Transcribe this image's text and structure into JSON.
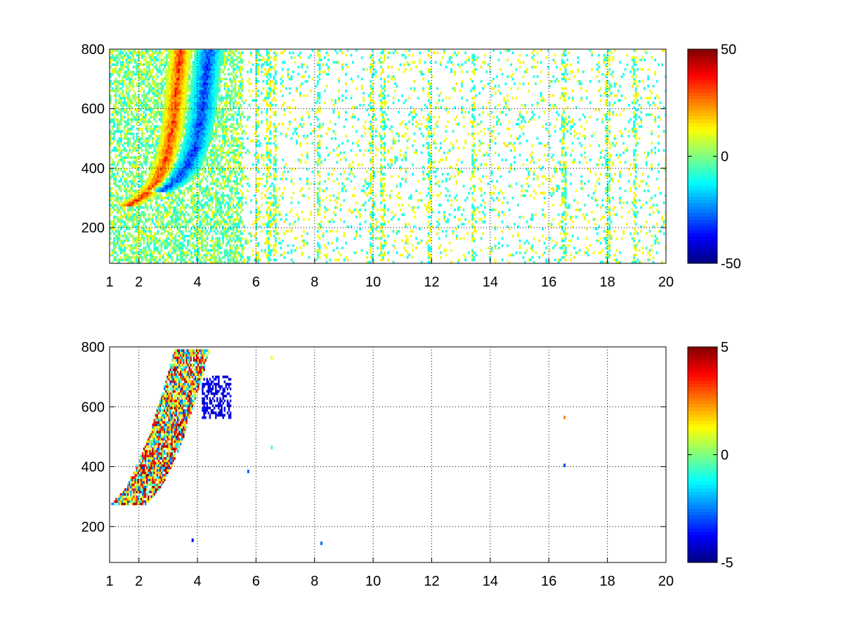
{
  "chart_data": [
    {
      "type": "heatmap",
      "title": "",
      "xlabel": "",
      "ylabel": "",
      "xlim": [
        1,
        20
      ],
      "ylim": [
        80,
        800
      ],
      "x_ticks": [
        1,
        2,
        4,
        6,
        8,
        10,
        12,
        14,
        16,
        18,
        20
      ],
      "x_tick_labels": [
        "1",
        "2",
        "4",
        "6",
        "8",
        "10",
        "12",
        "14",
        "16",
        "18",
        "20"
      ],
      "y_ticks": [
        200,
        400,
        600,
        800
      ],
      "y_tick_labels": [
        "200",
        "400",
        "600",
        "800"
      ],
      "grid": true,
      "grid_style": "dotted",
      "colormap": "jet",
      "clim": [
        -50,
        50
      ],
      "colorbar_ticks": [
        50,
        0,
        -50
      ],
      "colorbar_tick_labels": [
        "50",
        "0",
        "-50"
      ],
      "features": [
        {
          "kind": "positive_ridge",
          "points": [
            [
              1.6,
              270
            ],
            [
              2.1,
              300
            ],
            [
              2.6,
              350
            ],
            [
              2.9,
              430
            ],
            [
              3.1,
              520
            ],
            [
              3.2,
              600
            ],
            [
              3.3,
              700
            ],
            [
              3.4,
              800
            ]
          ],
          "value": 40
        },
        {
          "kind": "negative_ridge",
          "points": [
            [
              2.7,
              320
            ],
            [
              3.2,
              350
            ],
            [
              3.6,
              400
            ],
            [
              3.9,
              470
            ],
            [
              4.1,
              560
            ],
            [
              4.2,
              650
            ],
            [
              4.3,
              750
            ],
            [
              4.4,
              800
            ]
          ],
          "value": -40
        },
        {
          "kind": "noise_columns",
          "x": [
            6.0,
            6.4,
            6.6,
            8.1,
            9.9,
            10.3,
            11.9,
            13.4,
            16.5,
            18.0,
            18.9
          ]
        }
      ]
    },
    {
      "type": "heatmap",
      "title": "",
      "xlabel": "",
      "ylabel": "",
      "xlim": [
        1,
        20
      ],
      "ylim": [
        80,
        800
      ],
      "x_ticks": [
        1,
        2,
        4,
        6,
        8,
        10,
        12,
        14,
        16,
        18,
        20
      ],
      "x_tick_labels": [
        "1",
        "2",
        "4",
        "6",
        "8",
        "10",
        "12",
        "14",
        "16",
        "18",
        "20"
      ],
      "y_ticks": [
        200,
        400,
        600,
        800
      ],
      "y_tick_labels": [
        "200",
        "400",
        "600",
        "800"
      ],
      "grid": true,
      "grid_style": "dotted",
      "colormap": "jet",
      "clim": [
        -5,
        5
      ],
      "colorbar_ticks": [
        5,
        0,
        -5
      ],
      "colorbar_tick_labels": [
        "5",
        "0",
        "-5"
      ],
      "features": [
        {
          "kind": "mixed_band",
          "points": [
            [
              1.6,
              270
            ],
            [
              2.1,
              320
            ],
            [
              2.6,
              420
            ],
            [
              3.0,
              520
            ],
            [
              3.3,
              620
            ],
            [
              3.6,
              720
            ],
            [
              3.8,
              790
            ]
          ],
          "value": 2
        },
        {
          "kind": "negative_patch",
          "x_range": [
            4.1,
            5.1
          ],
          "y_range": [
            560,
            700
          ],
          "value": -4
        },
        {
          "kind": "sparse_points",
          "points": [
            [
              6.5,
              760
            ],
            [
              6.5,
              460
            ],
            [
              8.2,
              140
            ],
            [
              3.8,
              150
            ],
            [
              5.7,
              380
            ],
            [
              16.5,
              560
            ],
            [
              16.5,
              400
            ]
          ]
        }
      ]
    }
  ]
}
